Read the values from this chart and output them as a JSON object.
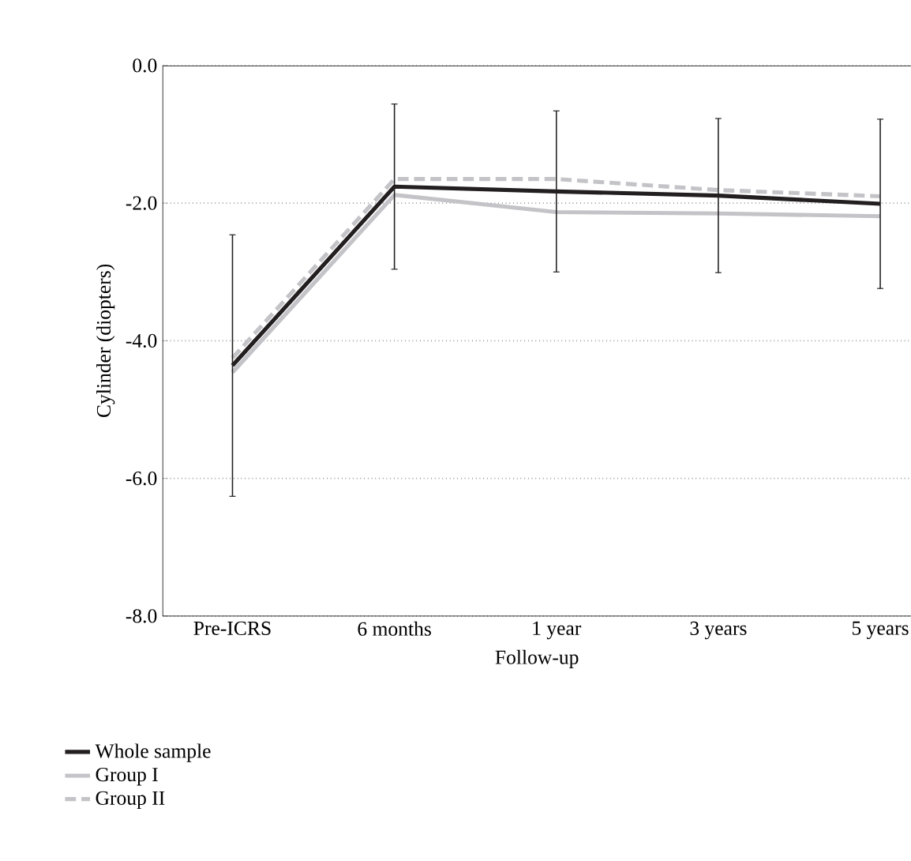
{
  "chart_data": {
    "type": "line",
    "xlabel": "Follow-up",
    "ylabel": "Cylinder (diopters)",
    "categories": [
      "Pre-ICRS",
      "6 months",
      "1 year",
      "3 years",
      "5 years"
    ],
    "series": [
      {
        "name": "Whole sample",
        "color": "#231f20",
        "values": [
          -4.36,
          -1.76,
          -1.83,
          -1.89,
          -2.01
        ],
        "errors": [
          1.9,
          1.2,
          1.17,
          1.12,
          1.23
        ],
        "line_style": "solid"
      },
      {
        "name": "Group I",
        "color": "#c4c4c8",
        "values": [
          -4.46,
          -1.88,
          -2.13,
          -2.15,
          -2.19
        ],
        "line_style": "solid"
      },
      {
        "name": "Group II",
        "color": "#c4c4c8",
        "values": [
          -4.25,
          -1.65,
          -1.65,
          -1.81,
          -1.9
        ],
        "line_style": "dashed"
      }
    ],
    "ylim": [
      -8,
      0
    ],
    "yticks": [
      {
        "value": -8,
        "label": "-8.0"
      },
      {
        "value": -6,
        "label": "-6.0"
      },
      {
        "value": -4,
        "label": "-4.0"
      },
      {
        "value": -2,
        "label": "-2.0"
      },
      {
        "value": 0,
        "label": "0.0"
      }
    ],
    "grid": "y",
    "legend": "bottom",
    "marker": "none"
  }
}
